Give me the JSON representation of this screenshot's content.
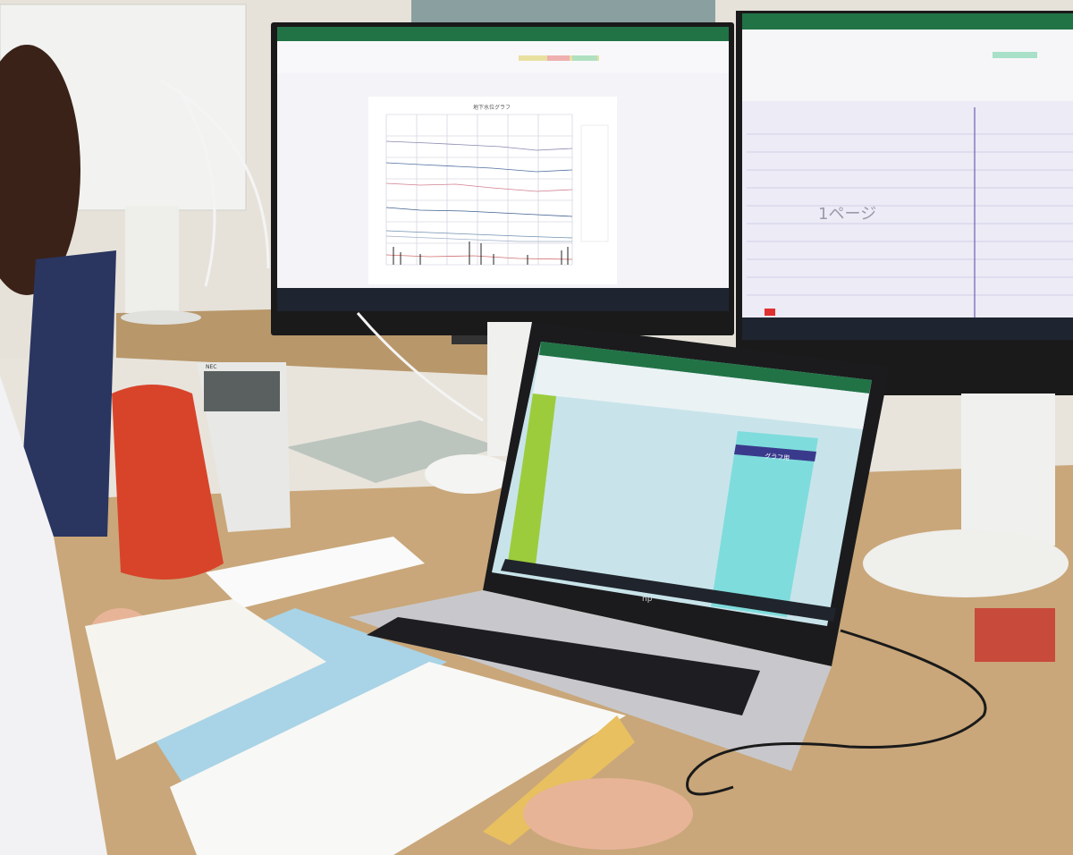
{
  "scene": {
    "description_labels": {
      "left_monitor_chart_title": "地下水位グラフ",
      "right_monitor_page_label": "1ページ",
      "laptop_sheet_header": "グラフ用",
      "phone_brand": "NEC",
      "laptop_brand": "hp"
    },
    "colors": {
      "excel_green": "#217346",
      "desk": "#c9a77a",
      "laptop_highlight_green": "#9ccc3c",
      "laptop_highlight_cyan": "#7fdcdc",
      "laptop_header_navy": "#3a3a8c",
      "pencil_case": "#d8442a",
      "folder_blue": "#a9d3e6"
    }
  }
}
